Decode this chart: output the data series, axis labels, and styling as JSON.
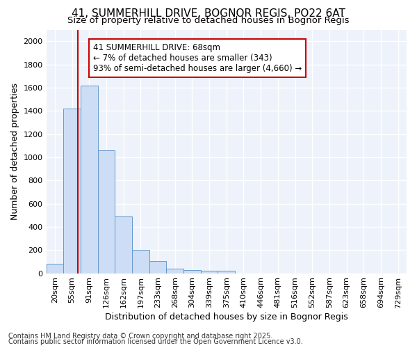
{
  "title1": "41, SUMMERHILL DRIVE, BOGNOR REGIS, PO22 6AT",
  "title2": "Size of property relative to detached houses in Bognor Regis",
  "xlabel": "Distribution of detached houses by size in Bognor Regis",
  "ylabel": "Number of detached properties",
  "categories": [
    "20sqm",
    "55sqm",
    "91sqm",
    "126sqm",
    "162sqm",
    "197sqm",
    "233sqm",
    "268sqm",
    "304sqm",
    "339sqm",
    "375sqm",
    "410sqm",
    "446sqm",
    "481sqm",
    "516sqm",
    "552sqm",
    "587sqm",
    "623sqm",
    "658sqm",
    "694sqm",
    "729sqm"
  ],
  "values": [
    80,
    1420,
    1620,
    1060,
    490,
    200,
    105,
    40,
    30,
    20,
    20,
    0,
    0,
    0,
    0,
    0,
    0,
    0,
    0,
    0,
    0
  ],
  "bar_color": "#ccddf5",
  "bar_edge_color": "#6699cc",
  "ylim": [
    0,
    2100
  ],
  "yticks": [
    0,
    200,
    400,
    600,
    800,
    1000,
    1200,
    1400,
    1600,
    1800,
    2000
  ],
  "annotation_title": "41 SUMMERHILL DRIVE: 68sqm",
  "annotation_line1": "← 7% of detached houses are smaller (343)",
  "annotation_line2": "93% of semi-detached houses are larger (4,660) →",
  "annotation_color": "#cc0000",
  "background_color": "#eef2fa",
  "grid_color": "#ffffff",
  "footer1": "Contains HM Land Registry data © Crown copyright and database right 2025.",
  "footer2": "Contains public sector information licensed under the Open Government Licence v3.0.",
  "title_fontsize": 11,
  "subtitle_fontsize": 9.5,
  "tick_fontsize": 8,
  "ylabel_fontsize": 9,
  "xlabel_fontsize": 9,
  "ann_fontsize": 8.5,
  "footer_fontsize": 7
}
